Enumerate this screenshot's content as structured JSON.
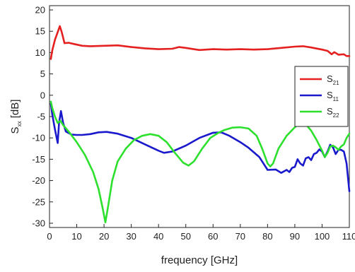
{
  "chart_data": {
    "type": "line",
    "xlabel": "frequency [GHz]",
    "ylabel_main": "S",
    "ylabel_sub": "xx",
    "ylabel_unit": " [dB]",
    "xlim": [
      0,
      110
    ],
    "ylim": [
      -31,
      21
    ],
    "xticks": [
      0,
      10,
      20,
      30,
      40,
      50,
      60,
      70,
      80,
      90,
      100,
      110
    ],
    "yticks": [
      -30,
      -25,
      -20,
      -15,
      -10,
      -5,
      0,
      5,
      10,
      15,
      20
    ],
    "grid": false,
    "legend_position": "right",
    "series": [
      {
        "name": "S21",
        "label_main": "S",
        "label_sub": "21",
        "color": "#e52020",
        "points": [
          [
            0.5,
            8.5
          ],
          [
            1,
            10.5
          ],
          [
            2,
            13
          ],
          [
            3,
            14.8
          ],
          [
            3.8,
            16.2
          ],
          [
            4.5,
            14.8
          ],
          [
            5.5,
            12.2
          ],
          [
            7,
            12.3
          ],
          [
            9,
            12
          ],
          [
            12,
            11.6
          ],
          [
            15,
            11.5
          ],
          [
            20,
            11.6
          ],
          [
            25,
            11.7
          ],
          [
            30,
            11.3
          ],
          [
            35,
            11
          ],
          [
            40,
            10.8
          ],
          [
            45,
            10.9
          ],
          [
            47.5,
            11.3
          ],
          [
            50,
            11.1
          ],
          [
            55,
            10.6
          ],
          [
            60,
            10.8
          ],
          [
            65,
            10.7
          ],
          [
            70,
            10.8
          ],
          [
            75,
            10.7
          ],
          [
            80,
            10.8
          ],
          [
            85,
            11.1
          ],
          [
            90,
            11.4
          ],
          [
            93,
            11.5
          ],
          [
            96,
            11.2
          ],
          [
            100,
            10.7
          ],
          [
            102,
            10.4
          ],
          [
            103.5,
            9.6
          ],
          [
            104.5,
            10.1
          ],
          [
            106,
            9.5
          ],
          [
            108,
            9.6
          ],
          [
            109,
            9.2
          ],
          [
            110,
            9.2
          ]
        ]
      },
      {
        "name": "S11",
        "label_main": "S",
        "label_sub": "11",
        "color": "#1a1acc",
        "points": [
          [
            0.5,
            -2
          ],
          [
            1,
            -4.5
          ],
          [
            2,
            -8
          ],
          [
            3,
            -11.2
          ],
          [
            3.5,
            -6.5
          ],
          [
            4.2,
            -3.7
          ],
          [
            5,
            -6.5
          ],
          [
            6,
            -8.5
          ],
          [
            8,
            -9.2
          ],
          [
            10,
            -9.3
          ],
          [
            12,
            -9.3
          ],
          [
            15,
            -9.1
          ],
          [
            18,
            -8.7
          ],
          [
            21,
            -8.6
          ],
          [
            25,
            -9
          ],
          [
            30,
            -10
          ],
          [
            35,
            -11.5
          ],
          [
            40,
            -13
          ],
          [
            42,
            -13.5
          ],
          [
            45,
            -13.2
          ],
          [
            50,
            -11.8
          ],
          [
            55,
            -10
          ],
          [
            60,
            -8.8
          ],
          [
            63,
            -8.7
          ],
          [
            66,
            -9.5
          ],
          [
            70,
            -11
          ],
          [
            73,
            -12.3
          ],
          [
            77,
            -14.5
          ],
          [
            80,
            -17.5
          ],
          [
            83,
            -17.4
          ],
          [
            85,
            -18.2
          ],
          [
            87,
            -17.5
          ],
          [
            88,
            -18
          ],
          [
            89,
            -17
          ],
          [
            90,
            -16.8
          ],
          [
            91,
            -15
          ],
          [
            92,
            -16
          ],
          [
            93,
            -16.5
          ],
          [
            94,
            -14.8
          ],
          [
            95,
            -14.5
          ],
          [
            96,
            -15.2
          ],
          [
            97,
            -13.8
          ],
          [
            98,
            -13.5
          ],
          [
            99,
            -12.7
          ],
          [
            100,
            -13.2
          ],
          [
            101,
            -14.5
          ],
          [
            102,
            -13.2
          ],
          [
            103,
            -11.6
          ],
          [
            104,
            -12.2
          ],
          [
            105,
            -13.8
          ],
          [
            106,
            -12.8
          ],
          [
            107,
            -12.8
          ],
          [
            108,
            -13.2
          ],
          [
            109,
            -16
          ],
          [
            110,
            -22.5
          ]
        ]
      },
      {
        "name": "S22",
        "label_main": "S",
        "label_sub": "22",
        "color": "#2ee02e",
        "points": [
          [
            0.5,
            -1.5
          ],
          [
            1,
            -3
          ],
          [
            2,
            -5
          ],
          [
            3,
            -6.5
          ],
          [
            4,
            -6
          ],
          [
            5,
            -7
          ],
          [
            7,
            -8.5
          ],
          [
            10,
            -11
          ],
          [
            13,
            -14
          ],
          [
            16,
            -18
          ],
          [
            18,
            -22
          ],
          [
            19.5,
            -26.5
          ],
          [
            20.5,
            -29.8
          ],
          [
            21.5,
            -26
          ],
          [
            23,
            -20
          ],
          [
            25,
            -15.5
          ],
          [
            28,
            -12.5
          ],
          [
            31,
            -10.5
          ],
          [
            34,
            -9.5
          ],
          [
            37,
            -9.1
          ],
          [
            40,
            -9.5
          ],
          [
            43,
            -11
          ],
          [
            46,
            -13.5
          ],
          [
            49,
            -15.8
          ],
          [
            51,
            -16.5
          ],
          [
            53,
            -15.5
          ],
          [
            56,
            -12.5
          ],
          [
            59,
            -10
          ],
          [
            62,
            -8.8
          ],
          [
            64,
            -8.2
          ],
          [
            67,
            -7.6
          ],
          [
            70,
            -7.5
          ],
          [
            73,
            -7.8
          ],
          [
            76,
            -9.5
          ],
          [
            78,
            -12.5
          ],
          [
            80,
            -16
          ],
          [
            81,
            -16.7
          ],
          [
            82,
            -16
          ],
          [
            84,
            -12.5
          ],
          [
            87,
            -9.5
          ],
          [
            90,
            -7.5
          ],
          [
            92,
            -6.5
          ],
          [
            94,
            -6.8
          ],
          [
            96,
            -8.3
          ],
          [
            98,
            -10.5
          ],
          [
            100,
            -13
          ],
          [
            101,
            -14.5
          ],
          [
            102,
            -13.5
          ],
          [
            103,
            -12
          ],
          [
            104,
            -11.8
          ],
          [
            105,
            -12.2
          ],
          [
            106,
            -12.8
          ],
          [
            107,
            -12
          ],
          [
            108,
            -11.5
          ],
          [
            109,
            -10
          ],
          [
            110,
            -9
          ]
        ]
      }
    ]
  }
}
